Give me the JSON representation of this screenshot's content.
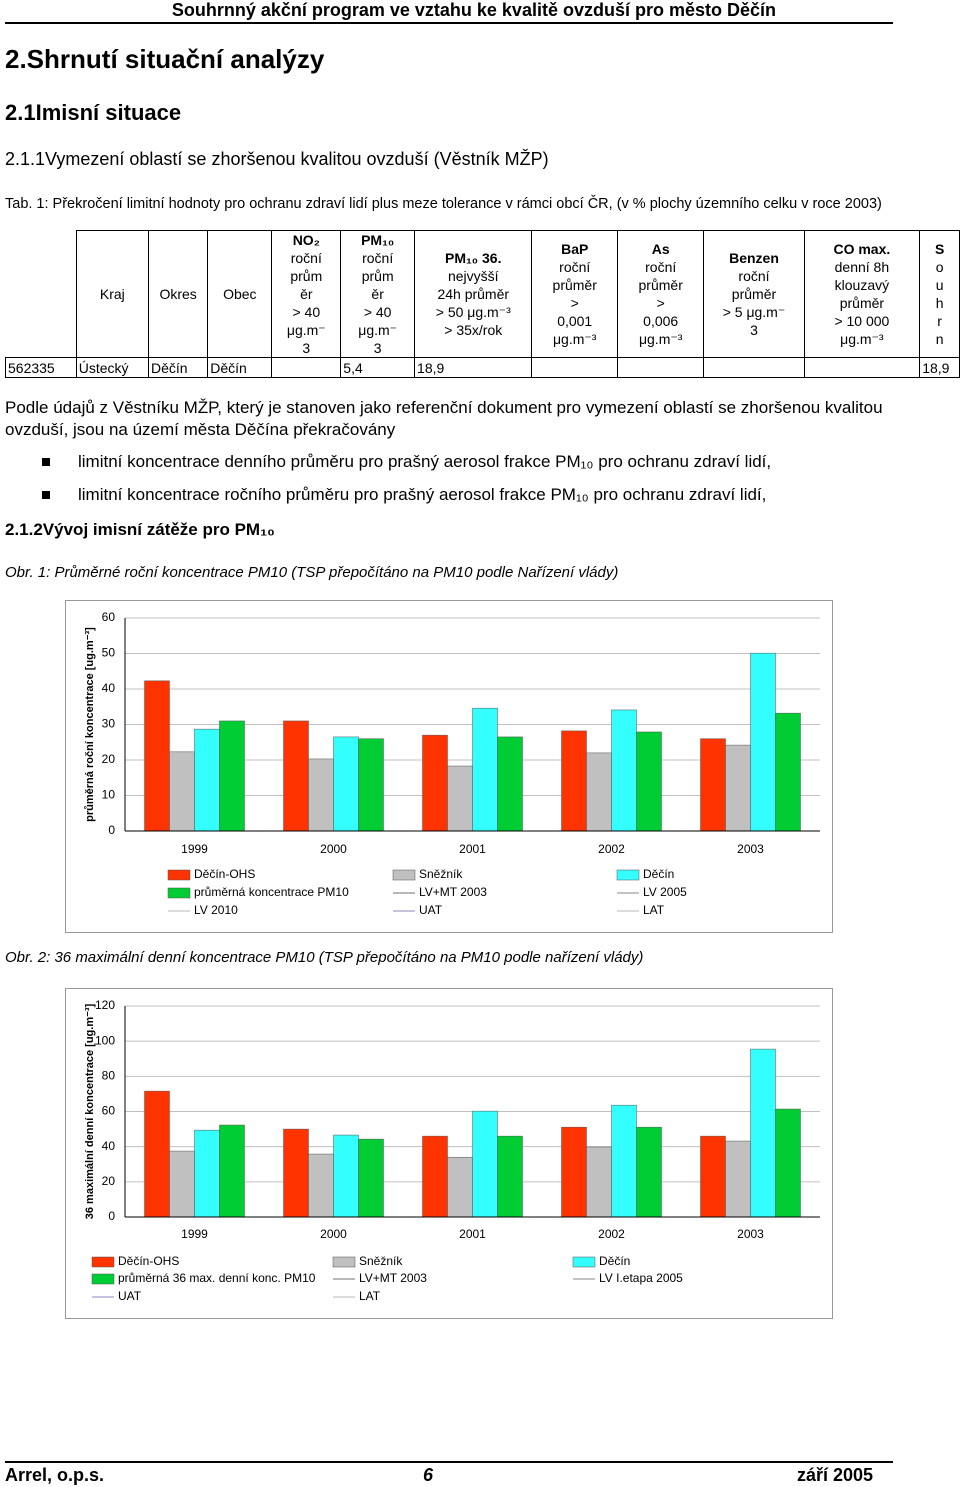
{
  "header": {
    "title": "Souhrnný akční program ve vztahu ke kvalitě ovzduší pro město Děčín"
  },
  "headings": {
    "h1": "2.Shrnutí situační analýzy",
    "h2": "2.1Imisní situace",
    "h3": "2.1.1Vymezení oblastí se zhoršenou kvalitou ovzduší (Věstník MŽP)"
  },
  "table": {
    "caption": "Tab. 1: Překročení limitní hodnoty pro ochranu zdraví lidí plus meze tolerance v rámci obcí ČR, (v % plochy územního celku v roce 2003)",
    "columns": [
      null,
      [
        "Kraj"
      ],
      [
        "Okres"
      ],
      [
        "Obec"
      ],
      [
        "NO₂",
        "roční",
        "prům",
        "ěr",
        "> 40",
        "μg.m⁻",
        "3"
      ],
      [
        "PM₁₀",
        "roční",
        "prům",
        "ěr",
        "> 40",
        "μg.m⁻",
        "3"
      ],
      [
        "PM₁₀ 36.",
        "nejvyšší",
        "24h průměr",
        "> 50 μg.m⁻³",
        "> 35x/rok"
      ],
      [
        "BaP",
        "roční",
        "průměr",
        ">",
        "0,001",
        "μg.m⁻³"
      ],
      [
        "As",
        "roční",
        "průměr",
        ">",
        "0,006",
        "μg.m⁻³"
      ],
      [
        "Benzen",
        "roční",
        "průměr",
        "> 5 μg.m⁻",
        "3"
      ],
      [
        "CO max.",
        "denní 8h",
        "klouzavý",
        "průměr",
        "> 10 000",
        "μg.m⁻³"
      ],
      [
        "S",
        "o",
        "u",
        "h",
        "r",
        "n"
      ]
    ],
    "rows": [
      [
        "562335",
        "Ústecký",
        "Děčín",
        "Děčín",
        null,
        "5,4",
        "18,9",
        null,
        null,
        null,
        null,
        "18,9"
      ]
    ]
  },
  "body": {
    "paragraph": "Podle údajů z Věstníku MŽP, který je stanoven jako referenční dokument pro vymezení oblastí se zhoršenou kvalitou ovzduší, jsou na území města Děčína překračovány",
    "bullets": [
      "limitní koncentrace denního průměru pro prašný aerosol frakce PM₁₀ pro ochranu zdraví lidí,",
      "limitní koncentrace ročního průměru pro prašný aerosol frakce PM₁₀ pro ochranu zdraví lidí,"
    ],
    "heading": "2.1.2Vývoj imisní zátěže pro PM₁₀"
  },
  "chart_data": [
    {
      "type": "bar",
      "title": "Obr. 1: Průměrné roční koncentrace PM10 (TSP přepočítáno na PM10 podle Nařízení vlády)",
      "y_label": "průměrná roční koncentrace [ug.m⁻³]",
      "categories": [
        "1999",
        "2000",
        "2001",
        "2002",
        "2003"
      ],
      "series": [
        {
          "name": "Děčín-OHS",
          "color": "#ff3300",
          "values": [
            42.3,
            31,
            27,
            28.2,
            26
          ]
        },
        {
          "name": "Sněžník",
          "color": "#c0c0c0",
          "values": [
            22.3,
            20.3,
            18.3,
            22,
            24.2
          ]
        },
        {
          "name": "Děčín",
          "color": "#33ffff",
          "values": [
            28.7,
            26.5,
            34.6,
            34.1,
            50.1
          ]
        },
        {
          "name": "průměrná koncentrace PM10",
          "color": "#00cc33",
          "values": [
            31,
            26,
            26.5,
            27.9,
            33.2
          ]
        }
      ],
      "reference_lines": [
        {
          "name": "LV+MT 2003",
          "color": "#a0a0a0"
        },
        {
          "name": "LV 2005",
          "color": "#b0b0b0"
        },
        {
          "name": "LV 2010",
          "color": "#d0d0d0"
        },
        {
          "name": "UAT",
          "color": "#b0b0d8"
        },
        {
          "name": "LAT",
          "color": "#d0d0d0"
        }
      ],
      "ylim": [
        0,
        60
      ],
      "yticks": [
        0,
        10,
        20,
        30,
        40,
        50,
        60
      ],
      "grid": true
    },
    {
      "type": "bar",
      "title": "Obr. 2: 36 maximální denní  koncentrace PM10 (TSP přepočítáno na PM10 podle nařízení vlády)",
      "y_label": "36 maximální denní koncentrace [ug.m⁻³]",
      "categories": [
        "1999",
        "2000",
        "2001",
        "2002",
        "2003"
      ],
      "series": [
        {
          "name": "Děčín-OHS",
          "color": "#ff3300",
          "values": [
            71.6,
            50,
            46,
            51.1,
            46
          ]
        },
        {
          "name": "Sněžník",
          "color": "#c0c0c0",
          "values": [
            37.5,
            35.8,
            34,
            39.8,
            43.2
          ]
        },
        {
          "name": "Děčín",
          "color": "#33ffff",
          "values": [
            49.4,
            46.6,
            60.2,
            63.6,
            95.5
          ]
        },
        {
          "name": "průměrná 36 max. denní konc. PM10",
          "color": "#00cc33",
          "values": [
            52.3,
            44.3,
            46,
            51.1,
            61.4
          ]
        }
      ],
      "reference_lines": [
        {
          "name": "LV+MT 2003",
          "color": "#a0a0a0"
        },
        {
          "name": "LV I.etapa 2005",
          "color": "#b0b0b0"
        },
        {
          "name": "UAT",
          "color": "#b0b0d8"
        },
        {
          "name": "LAT",
          "color": "#d0d0d0"
        }
      ],
      "ylim": [
        0,
        120
      ],
      "yticks": [
        0,
        20,
        40,
        60,
        80,
        100,
        120
      ],
      "grid": true
    }
  ],
  "footer": {
    "left": "Arrel, o.p.s.",
    "page": "6",
    "date": "září 2005"
  }
}
